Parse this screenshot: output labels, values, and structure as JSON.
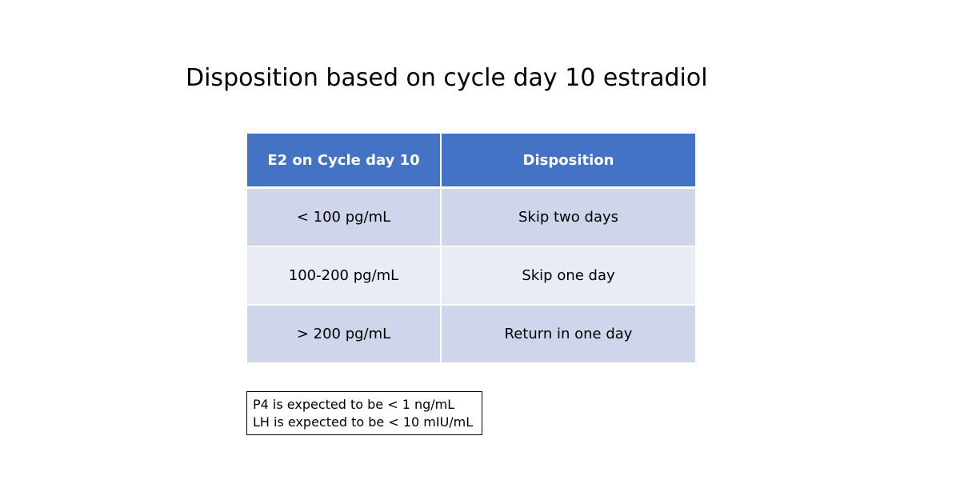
{
  "title": "Disposition based on cycle day 10 estradiol",
  "colors": {
    "header_bg": "#4472c4",
    "row_dark": "#cfd5ea",
    "row_light": "#e9ebf5",
    "header_text": "#ffffff"
  },
  "table": {
    "headers": [
      "E2 on Cycle day 10",
      "Disposition"
    ],
    "rows": [
      [
        "< 100 pg/mL",
        "Skip two days"
      ],
      [
        "100-200 pg/mL",
        "Skip one day"
      ],
      [
        "> 200 pg/mL",
        "Return in one day"
      ]
    ]
  },
  "note": {
    "lines": [
      "P4 is expected to be < 1 ng/mL",
      "LH is expected to be < 10 mIU/mL"
    ]
  }
}
